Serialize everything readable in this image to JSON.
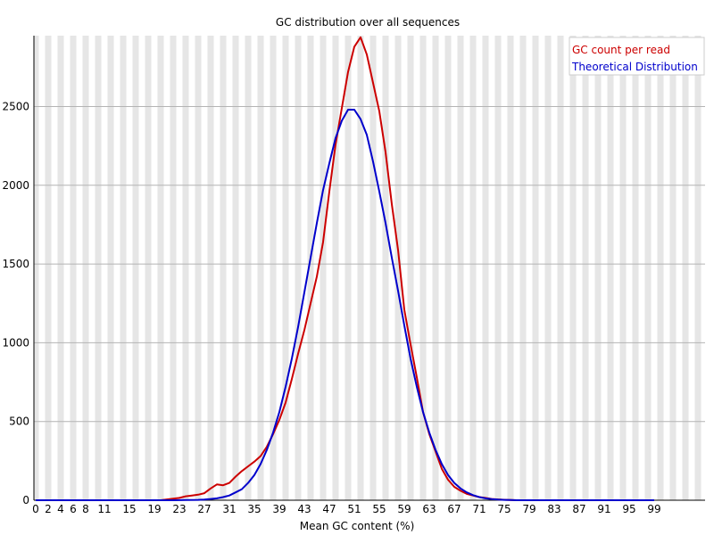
{
  "chart_data": {
    "type": "line",
    "title": "GC distribution over all sequences",
    "xlabel": "Mean GC content (%)",
    "ylabel": "",
    "x_tick_labels": [
      "0",
      "2",
      "4",
      "6",
      "8",
      "11",
      "15",
      "19",
      "23",
      "27",
      "31",
      "35",
      "39",
      "43",
      "47",
      "51",
      "55",
      "59",
      "63",
      "67",
      "71",
      "75",
      "79",
      "83",
      "87",
      "91",
      "95",
      "99"
    ],
    "x_tick_values": [
      0,
      2,
      4,
      6,
      8,
      11,
      15,
      19,
      23,
      27,
      31,
      35,
      39,
      43,
      47,
      51,
      55,
      59,
      63,
      67,
      71,
      75,
      79,
      83,
      87,
      91,
      95,
      99
    ],
    "xlim": [
      0,
      100
    ],
    "ylim": [
      0,
      2950
    ],
    "y_ticks": [
      0,
      500,
      1000,
      1500,
      2000,
      2500
    ],
    "grid": "horizontal lines with alternating vertical shaded bands",
    "legend_position": "top-right",
    "series": [
      {
        "name": "GC count per read",
        "color": "#cc0000",
        "points": [
          [
            0,
            0
          ],
          [
            5,
            0
          ],
          [
            10,
            0
          ],
          [
            15,
            0
          ],
          [
            20,
            0
          ],
          [
            21,
            5
          ],
          [
            22,
            10
          ],
          [
            23,
            15
          ],
          [
            24,
            25
          ],
          [
            25,
            30
          ],
          [
            26,
            35
          ],
          [
            27,
            45
          ],
          [
            28,
            75
          ],
          [
            29,
            100
          ],
          [
            30,
            95
          ],
          [
            31,
            110
          ],
          [
            32,
            150
          ],
          [
            33,
            185
          ],
          [
            34,
            215
          ],
          [
            35,
            245
          ],
          [
            36,
            280
          ],
          [
            37,
            340
          ],
          [
            38,
            420
          ],
          [
            39,
            510
          ],
          [
            40,
            620
          ],
          [
            41,
            770
          ],
          [
            42,
            930
          ],
          [
            43,
            1080
          ],
          [
            44,
            1250
          ],
          [
            45,
            1420
          ],
          [
            46,
            1640
          ],
          [
            47,
            1960
          ],
          [
            48,
            2260
          ],
          [
            49,
            2490
          ],
          [
            50,
            2720
          ],
          [
            51,
            2880
          ],
          [
            52,
            2940
          ],
          [
            53,
            2830
          ],
          [
            54,
            2650
          ],
          [
            55,
            2470
          ],
          [
            56,
            2210
          ],
          [
            57,
            1880
          ],
          [
            58,
            1590
          ],
          [
            59,
            1210
          ],
          [
            60,
            990
          ],
          [
            61,
            780
          ],
          [
            62,
            560
          ],
          [
            63,
            420
          ],
          [
            64,
            310
          ],
          [
            65,
            200
          ],
          [
            66,
            130
          ],
          [
            67,
            85
          ],
          [
            68,
            60
          ],
          [
            69,
            40
          ],
          [
            70,
            30
          ],
          [
            71,
            20
          ],
          [
            72,
            15
          ],
          [
            73,
            8
          ],
          [
            74,
            5
          ],
          [
            75,
            3
          ],
          [
            76,
            1
          ],
          [
            77,
            0
          ],
          [
            80,
            0
          ],
          [
            85,
            0
          ],
          [
            90,
            0
          ],
          [
            95,
            0
          ],
          [
            99,
            0
          ]
        ]
      },
      {
        "name": "Theoretical Distribution",
        "color": "#0000cc",
        "points": [
          [
            0,
            0
          ],
          [
            5,
            0
          ],
          [
            10,
            0
          ],
          [
            15,
            0
          ],
          [
            20,
            0
          ],
          [
            22,
            0
          ],
          [
            24,
            1
          ],
          [
            26,
            2
          ],
          [
            27,
            4
          ],
          [
            28,
            8
          ],
          [
            29,
            12
          ],
          [
            30,
            20
          ],
          [
            31,
            30
          ],
          [
            32,
            50
          ],
          [
            33,
            70
          ],
          [
            34,
            110
          ],
          [
            35,
            160
          ],
          [
            36,
            230
          ],
          [
            37,
            320
          ],
          [
            38,
            430
          ],
          [
            39,
            560
          ],
          [
            40,
            720
          ],
          [
            41,
            900
          ],
          [
            42,
            1100
          ],
          [
            43,
            1320
          ],
          [
            44,
            1540
          ],
          [
            45,
            1760
          ],
          [
            46,
            1970
          ],
          [
            47,
            2140
          ],
          [
            48,
            2300
          ],
          [
            49,
            2410
          ],
          [
            50,
            2480
          ],
          [
            51,
            2480
          ],
          [
            52,
            2420
          ],
          [
            53,
            2320
          ],
          [
            54,
            2150
          ],
          [
            55,
            1960
          ],
          [
            56,
            1760
          ],
          [
            57,
            1540
          ],
          [
            58,
            1330
          ],
          [
            59,
            1110
          ],
          [
            60,
            900
          ],
          [
            61,
            720
          ],
          [
            62,
            560
          ],
          [
            63,
            430
          ],
          [
            64,
            320
          ],
          [
            65,
            230
          ],
          [
            66,
            160
          ],
          [
            67,
            110
          ],
          [
            68,
            75
          ],
          [
            69,
            50
          ],
          [
            70,
            32
          ],
          [
            71,
            20
          ],
          [
            72,
            12
          ],
          [
            73,
            7
          ],
          [
            74,
            4
          ],
          [
            75,
            2
          ],
          [
            76,
            1
          ],
          [
            77,
            0
          ],
          [
            80,
            0
          ],
          [
            85,
            0
          ],
          [
            90,
            0
          ],
          [
            95,
            0
          ],
          [
            99,
            0
          ]
        ]
      }
    ]
  }
}
